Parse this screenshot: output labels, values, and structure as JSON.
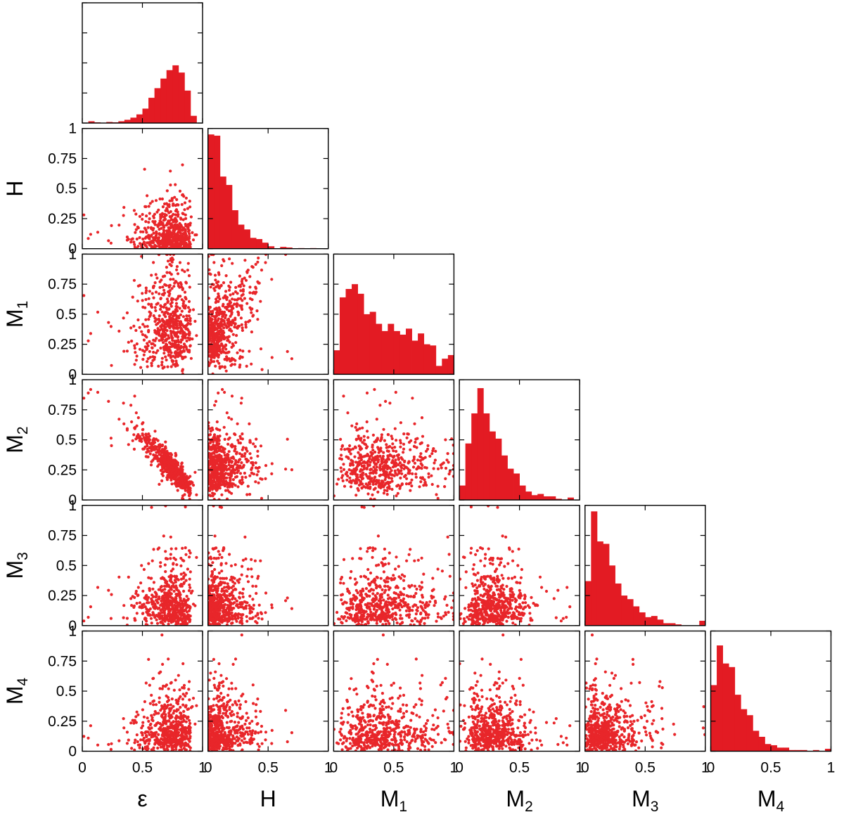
{
  "chart_data": {
    "type": "scatter",
    "layout": "corner-plot",
    "variables": [
      {
        "key": "eps",
        "label": "ε",
        "sub": ""
      },
      {
        "key": "H",
        "label": "H",
        "sub": ""
      },
      {
        "key": "M1",
        "label": "M",
        "sub": "1"
      },
      {
        "key": "M2",
        "label": "M",
        "sub": "2"
      },
      {
        "key": "M3",
        "label": "M",
        "sub": "3"
      },
      {
        "key": "M4",
        "label": "M",
        "sub": "4"
      }
    ],
    "axis_range": [
      0,
      1
    ],
    "x_ticks": [
      {
        "value": 0,
        "label": "0"
      },
      {
        "value": 0.5,
        "label": "0.5"
      },
      {
        "value": 1,
        "label": "1"
      }
    ],
    "y_ticks": [
      {
        "value": 0,
        "label": "0"
      },
      {
        "value": 0.25,
        "label": "0.25"
      },
      {
        "value": 0.5,
        "label": "0.5"
      },
      {
        "value": 0.75,
        "label": "0.75"
      },
      {
        "value": 1,
        "label": "1"
      }
    ],
    "histograms": {
      "bins": 20,
      "bin_range": [
        0,
        1
      ],
      "eps": [
        0.003,
        0.015,
        0.006,
        0.003,
        0.009,
        0.006,
        0.015,
        0.027,
        0.045,
        0.072,
        0.12,
        0.21,
        0.29,
        0.37,
        0.44,
        0.48,
        0.42,
        0.27,
        0.06,
        0.0
      ],
      "H": [
        0.95,
        0.94,
        0.6,
        0.53,
        0.32,
        0.2,
        0.16,
        0.09,
        0.08,
        0.05,
        0.02,
        0.0,
        0.015,
        0.01,
        0.0,
        0.005,
        0.0,
        0.005,
        0.0,
        0.0
      ],
      "M1": [
        0.2,
        0.64,
        0.71,
        0.75,
        0.67,
        0.5,
        0.52,
        0.42,
        0.36,
        0.42,
        0.36,
        0.33,
        0.38,
        0.28,
        0.34,
        0.25,
        0.24,
        0.07,
        0.13,
        0.16
      ],
      "M2": [
        0.12,
        0.47,
        0.72,
        0.93,
        0.72,
        0.57,
        0.51,
        0.37,
        0.26,
        0.22,
        0.12,
        0.07,
        0.04,
        0.05,
        0.03,
        0.03,
        0.01,
        0.0,
        0.02,
        0.0
      ],
      "M3": [
        0.37,
        0.95,
        0.7,
        0.68,
        0.5,
        0.35,
        0.25,
        0.22,
        0.16,
        0.11,
        0.07,
        0.08,
        0.05,
        0.02,
        0.02,
        0.01,
        0.0,
        0.0,
        0.0,
        0.04
      ],
      "M4": [
        0.55,
        0.88,
        0.73,
        0.7,
        0.47,
        0.35,
        0.3,
        0.17,
        0.12,
        0.06,
        0.05,
        0.03,
        0.03,
        0.01,
        0.01,
        0.01,
        0.0,
        0.01,
        0.0,
        0.02
      ]
    },
    "scatter": {
      "points_per_panel": 560,
      "marker_color": "#e8262a",
      "pairs": [
        {
          "x": "eps",
          "y": "H"
        },
        {
          "x": "eps",
          "y": "M1"
        },
        {
          "x": "H",
          "y": "M1"
        },
        {
          "x": "eps",
          "y": "M2"
        },
        {
          "x": "H",
          "y": "M2"
        },
        {
          "x": "M1",
          "y": "M2"
        },
        {
          "x": "eps",
          "y": "M3"
        },
        {
          "x": "H",
          "y": "M3"
        },
        {
          "x": "M1",
          "y": "M3"
        },
        {
          "x": "M2",
          "y": "M3"
        },
        {
          "x": "eps",
          "y": "M4"
        },
        {
          "x": "H",
          "y": "M4"
        },
        {
          "x": "M1",
          "y": "M4"
        },
        {
          "x": "M2",
          "y": "M4"
        },
        {
          "x": "M3",
          "y": "M4"
        }
      ],
      "notes": "M2 strongly anti-correlated with ε; M1 positively correlated with H; other pairs weakly related"
    },
    "colors": {
      "bars": "#e31b23",
      "points": "#e8262a",
      "axes": "#000000"
    },
    "grid": false,
    "legend": "none"
  }
}
